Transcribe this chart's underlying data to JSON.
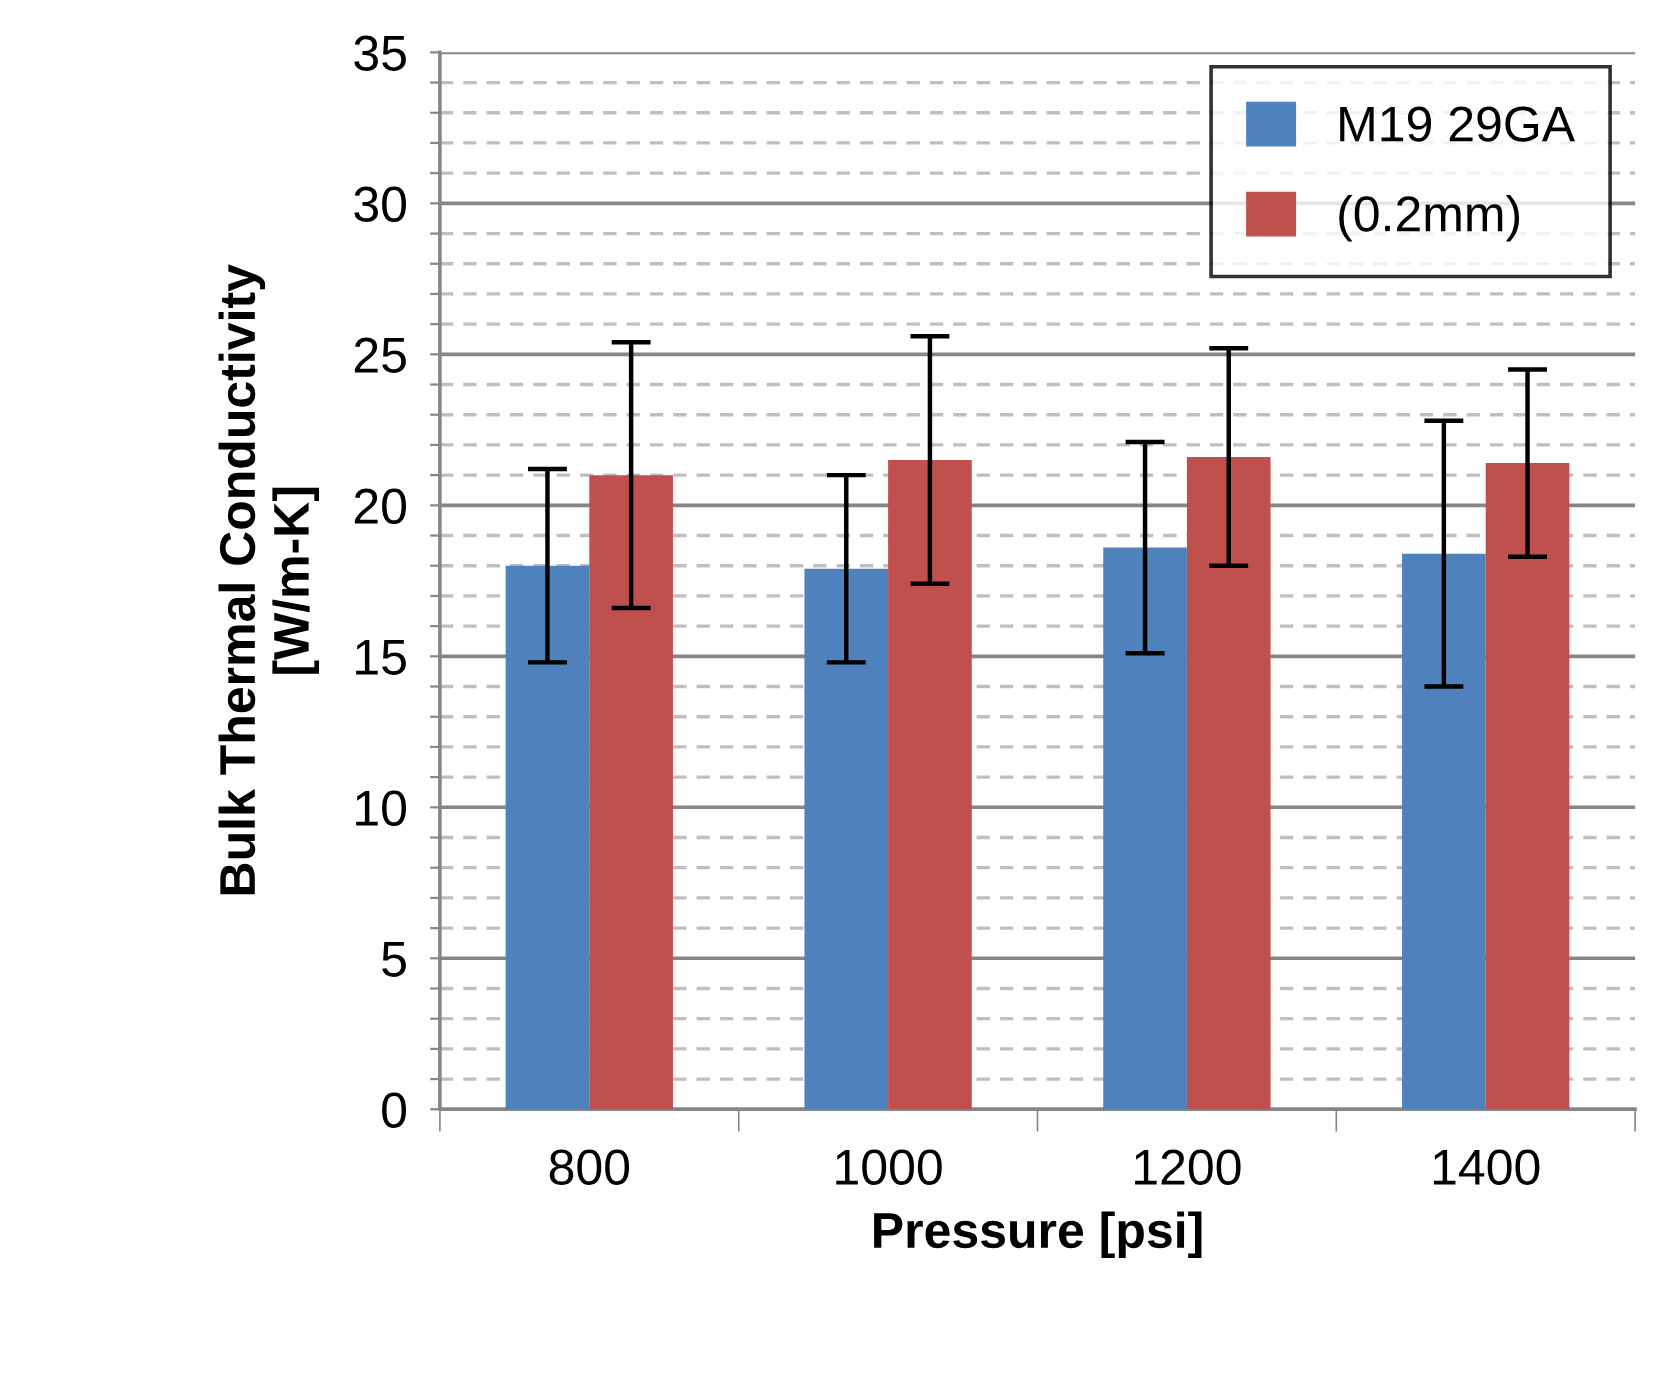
{
  "chart_data": {
    "type": "bar",
    "xlabel": "Pressure [psi]",
    "ylabel": "Bulk Thermal Conductivity\n[W/m-K]",
    "categories": [
      "800",
      "1000",
      "1200",
      "1400"
    ],
    "series": [
      {
        "name": "M19 29GA",
        "color": "#4f81bd",
        "values": [
          18.0,
          17.9,
          18.6,
          18.4
        ],
        "errors": [
          3.2,
          3.1,
          3.5,
          4.4
        ]
      },
      {
        "name": "(0.2mm)",
        "color": "#c0504d",
        "values": [
          21.0,
          21.5,
          21.6,
          21.4
        ],
        "errors": [
          4.4,
          4.1,
          3.6,
          3.1
        ]
      }
    ],
    "ylim": [
      0,
      35
    ],
    "yticks": [
      0,
      {
        "value": 1,
        "label": null
      },
      {
        "value": 2,
        "label": null
      },
      {
        "value": 3,
        "label": null
      },
      {
        "value": 4,
        "label": null
      },
      5,
      {
        "value": 6,
        "label": null
      },
      {
        "value": 7,
        "label": null
      },
      {
        "value": 8,
        "label": null
      },
      {
        "value": 9,
        "label": null
      },
      10,
      {
        "value": 11,
        "label": null
      },
      {
        "value": 12,
        "label": null
      },
      {
        "value": 13,
        "label": null
      },
      {
        "value": 14,
        "label": null
      },
      15,
      {
        "value": 16,
        "label": null
      },
      {
        "value": 17,
        "label": null
      },
      {
        "value": 18,
        "label": null
      },
      {
        "value": 19,
        "label": null
      },
      20,
      {
        "value": 21,
        "label": null
      },
      {
        "value": 22,
        "label": null
      },
      {
        "value": 23,
        "label": null
      },
      {
        "value": 24,
        "label": null
      },
      25,
      {
        "value": 26,
        "label": null
      },
      {
        "value": 27,
        "label": null
      },
      {
        "value": 28,
        "label": null
      },
      {
        "value": 29,
        "label": null
      },
      30,
      {
        "value": 31,
        "label": null
      },
      {
        "value": 32,
        "label": null
      },
      {
        "value": 33,
        "label": null
      },
      {
        "value": 34,
        "label": null
      },
      35
    ],
    "grid": "y",
    "legend": "top right"
  }
}
